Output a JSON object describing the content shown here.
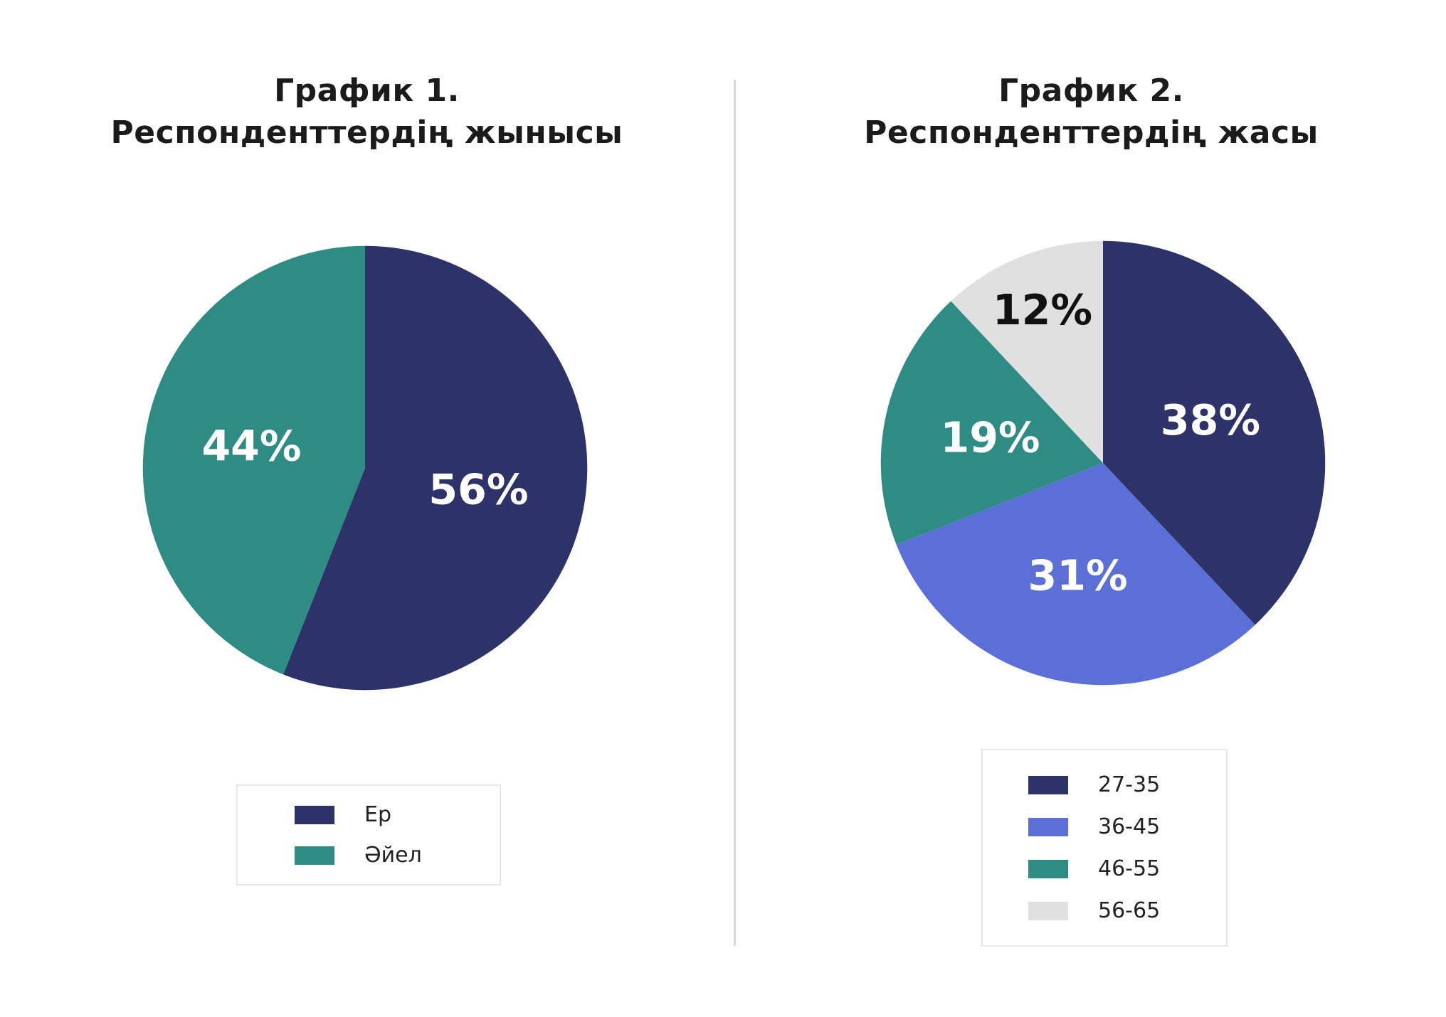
{
  "page": {
    "background_color": "#ffffff",
    "divider_color": "#d9d9d9"
  },
  "chart_data": [
    {
      "type": "pie",
      "title_line1": "График 1.",
      "title_line2": "Респонденттердің жынысы",
      "labels": [
        "Ер",
        "Әйел"
      ],
      "values": [
        56,
        44
      ],
      "value_labels": [
        "56%",
        "44%"
      ],
      "colors": [
        "#2d3268",
        "#2e8c85"
      ],
      "label_colors": [
        "#ffffff",
        "#ffffff"
      ],
      "start_angle_deg": 0,
      "direction": "clockwise",
      "legend_position": "bottom"
    },
    {
      "type": "pie",
      "title_line1": "График 2.",
      "title_line2": "Респонденттердің жасы",
      "labels": [
        "27-35",
        "36-45",
        "46-55",
        "56-65"
      ],
      "values": [
        38,
        31,
        19,
        12
      ],
      "value_labels": [
        "38%",
        "31%",
        "19%",
        "12%"
      ],
      "colors": [
        "#2d3268",
        "#5b6fd6",
        "#2e8c85",
        "#e0e0e0"
      ],
      "label_colors": [
        "#ffffff",
        "#ffffff",
        "#ffffff",
        "#111111"
      ],
      "start_angle_deg": 0,
      "direction": "clockwise",
      "legend_position": "bottom"
    }
  ]
}
